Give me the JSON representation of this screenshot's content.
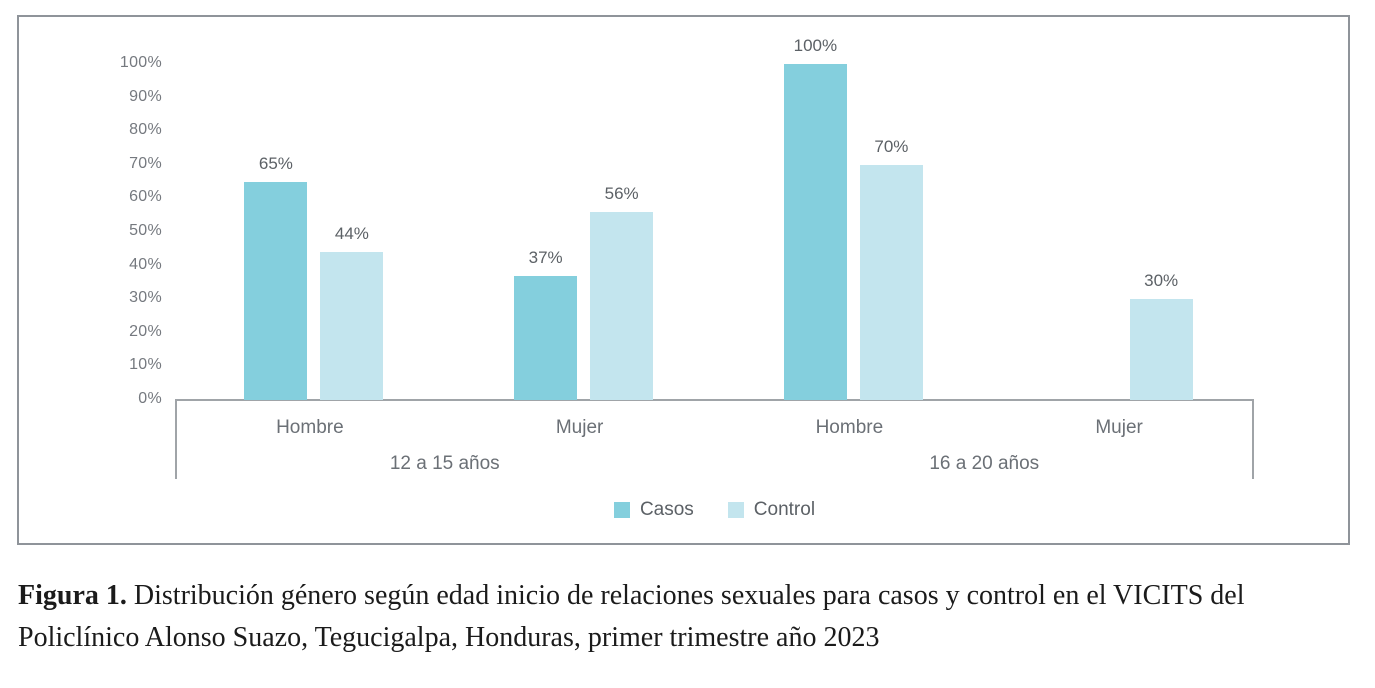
{
  "figure": {
    "caption_label": "Figura 1.",
    "caption_text": "Distribución género según edad inicio de relaciones sexuales para casos y control en el VICITS del Policlínico Alonso Suazo, Tegucigalpa, Honduras, primer trimestre año 2023"
  },
  "colors": {
    "casos": "#84cfdd",
    "control": "#c3e5ee",
    "axis": "#a0a4a8",
    "card_border": "#8f949a",
    "tick_text": "#75797f",
    "category_text": "#6b7076",
    "value_text": "#5c6166"
  },
  "legend": {
    "items": [
      {
        "label": "Casos",
        "color": "#84cfdd"
      },
      {
        "label": "Control",
        "color": "#c3e5ee"
      }
    ]
  },
  "chart_data": {
    "type": "bar",
    "unit": "%",
    "age_groups": [
      "12 a 15 años",
      "16 a 20 años"
    ],
    "categories": [
      {
        "age_group": "12 a 15 años",
        "gender": "Hombre"
      },
      {
        "age_group": "12 a 15 años",
        "gender": "Mujer"
      },
      {
        "age_group": "16 a 20 años",
        "gender": "Hombre"
      },
      {
        "age_group": "16 a 20 años",
        "gender": "Mujer"
      }
    ],
    "series": [
      {
        "name": "Casos",
        "values": [
          65,
          37,
          100,
          null
        ]
      },
      {
        "name": "Control",
        "values": [
          44,
          56,
          70,
          30
        ]
      }
    ],
    "value_label_format": "{v}%",
    "ylim": [
      0,
      100
    ],
    "ytick_step": 10,
    "ytick_format": "{v}%",
    "grid": false,
    "legend_position": "bottom-center"
  }
}
